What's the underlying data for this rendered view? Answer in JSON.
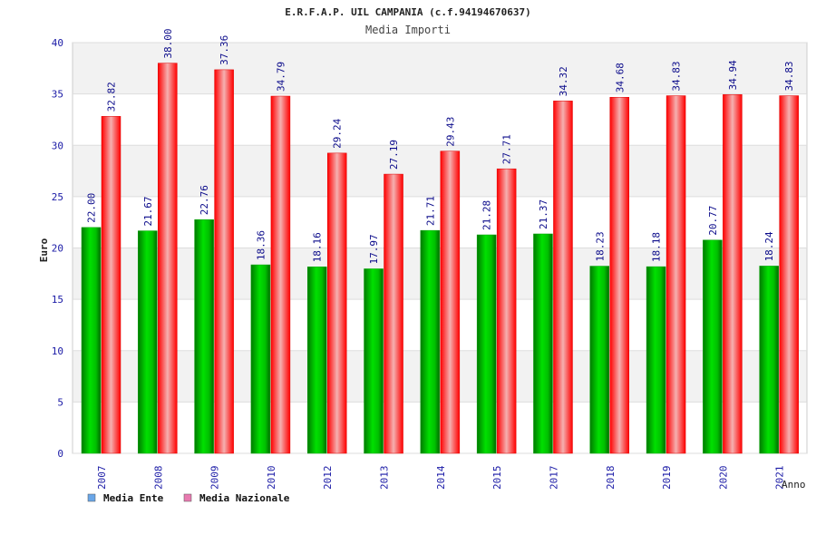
{
  "title": "E.R.F.A.P. UIL CAMPANIA (c.f.94194670637)",
  "subtitle": "Media Importi",
  "chart_data": {
    "type": "bar",
    "title": "E.R.F.A.P. UIL CAMPANIA (c.f.94194670637)",
    "subtitle": "Media Importi",
    "xlabel": "Anno",
    "ylabel": "Euro",
    "ylim": [
      0,
      40
    ],
    "yticks": [
      0,
      5,
      10,
      15,
      20,
      25,
      30,
      35,
      40
    ],
    "grid": true,
    "legend_position": "bottom-left",
    "categories": [
      "2007",
      "2008",
      "2009",
      "2010",
      "2012",
      "2013",
      "2014",
      "2015",
      "2017",
      "2018",
      "2019",
      "2020",
      "2021"
    ],
    "series": [
      {
        "name": "Media Ente",
        "color": "#00c000",
        "legend_color": "#6aa6e8",
        "values": [
          22.0,
          21.67,
          22.76,
          18.36,
          18.16,
          17.97,
          21.71,
          21.28,
          21.37,
          18.23,
          18.18,
          20.77,
          18.24
        ],
        "labels": [
          "22.00",
          "21.67",
          "22.76",
          "18.36",
          "18.16",
          "17.97",
          "21.71",
          "21.28",
          "21.37",
          "18.23",
          "18.18",
          "20.77",
          "18.24"
        ]
      },
      {
        "name": "Media Nazionale",
        "color": "#ff0000",
        "legend_color": "#e87ab0",
        "values": [
          32.82,
          38.0,
          37.36,
          34.79,
          29.24,
          27.19,
          29.43,
          27.71,
          34.32,
          34.68,
          34.83,
          34.94,
          34.83
        ],
        "labels": [
          "32.82",
          "38.00",
          "37.36",
          "34.79",
          "29.24",
          "27.19",
          "29.43",
          "27.71",
          "34.32",
          "34.68",
          "34.83",
          "34.94",
          "34.83"
        ]
      }
    ]
  }
}
